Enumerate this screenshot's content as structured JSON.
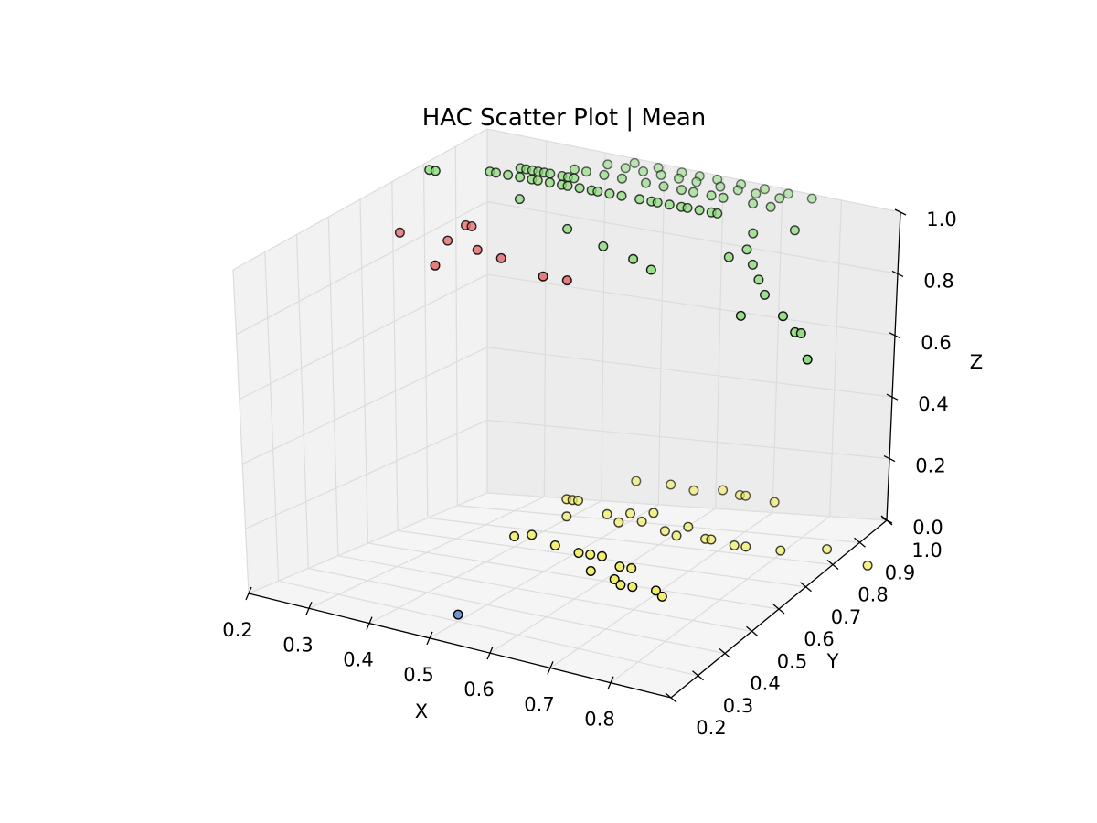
{
  "chart_data": {
    "type": "scatter3d",
    "title": "HAC Scatter Plot | Mean",
    "xlabel": "X",
    "ylabel": "Y",
    "zlabel": "Z",
    "xlim": [
      0.2,
      0.9
    ],
    "ylim": [
      0.2,
      1.0
    ],
    "zlim": [
      0.0,
      1.0
    ],
    "xticks": [
      "0.2",
      "0.3",
      "0.4",
      "0.5",
      "0.6",
      "0.7",
      "0.8"
    ],
    "yticks": [
      "0.2",
      "0.3",
      "0.4",
      "0.5",
      "0.6",
      "0.7",
      "0.8",
      "0.9",
      "1.0"
    ],
    "zticks": [
      "0.0",
      "0.2",
      "0.4",
      "0.6",
      "0.8",
      "1.0"
    ],
    "grid": true,
    "series": [
      {
        "color": "#8fdc7e",
        "points": [
          [
            0.22,
            0.78,
            1.0
          ],
          [
            0.23,
            0.78,
            1.0
          ],
          [
            0.3,
            0.82,
            1.0
          ],
          [
            0.31,
            0.82,
            1.0
          ],
          [
            0.33,
            0.82,
            1.0
          ],
          [
            0.35,
            0.82,
            1.0
          ],
          [
            0.37,
            0.82,
            1.0
          ],
          [
            0.38,
            0.82,
            1.0
          ],
          [
            0.4,
            0.82,
            1.0
          ],
          [
            0.42,
            0.82,
            1.0
          ],
          [
            0.43,
            0.82,
            1.0
          ],
          [
            0.45,
            0.82,
            1.0
          ],
          [
            0.47,
            0.82,
            1.0
          ],
          [
            0.48,
            0.82,
            1.0
          ],
          [
            0.5,
            0.82,
            1.0
          ],
          [
            0.52,
            0.82,
            1.0
          ],
          [
            0.33,
            0.86,
            1.0
          ],
          [
            0.34,
            0.86,
            1.0
          ],
          [
            0.35,
            0.86,
            1.0
          ],
          [
            0.36,
            0.86,
            1.0
          ],
          [
            0.37,
            0.86,
            1.0
          ],
          [
            0.38,
            0.86,
            1.0
          ],
          [
            0.4,
            0.86,
            1.0
          ],
          [
            0.41,
            0.86,
            1.0
          ],
          [
            0.42,
            0.86,
            1.0
          ],
          [
            0.55,
            0.82,
            1.0
          ],
          [
            0.57,
            0.82,
            1.0
          ],
          [
            0.58,
            0.82,
            1.0
          ],
          [
            0.6,
            0.82,
            1.0
          ],
          [
            0.62,
            0.82,
            1.0
          ],
          [
            0.63,
            0.82,
            1.0
          ],
          [
            0.65,
            0.82,
            1.0
          ],
          [
            0.67,
            0.82,
            1.0
          ],
          [
            0.68,
            0.82,
            1.0
          ],
          [
            0.4,
            0.9,
            1.0
          ],
          [
            0.42,
            0.9,
            1.0
          ],
          [
            0.45,
            0.9,
            1.0
          ],
          [
            0.48,
            0.9,
            1.0
          ],
          [
            0.52,
            0.9,
            1.0
          ],
          [
            0.55,
            0.9,
            1.0
          ],
          [
            0.58,
            0.9,
            1.0
          ],
          [
            0.6,
            0.9,
            1.0
          ],
          [
            0.63,
            0.9,
            1.0
          ],
          [
            0.65,
            0.9,
            1.0
          ],
          [
            0.7,
            0.9,
            1.0
          ],
          [
            0.73,
            0.9,
            1.0
          ],
          [
            0.43,
            0.95,
            1.0
          ],
          [
            0.46,
            0.95,
            1.0
          ],
          [
            0.49,
            0.95,
            1.0
          ],
          [
            0.52,
            0.95,
            1.0
          ],
          [
            0.55,
            0.95,
            1.0
          ],
          [
            0.58,
            0.95,
            1.0
          ],
          [
            0.62,
            0.95,
            1.0
          ],
          [
            0.65,
            0.95,
            1.0
          ],
          [
            0.68,
            0.95,
            1.0
          ],
          [
            0.72,
            0.95,
            1.0
          ],
          [
            0.46,
            0.98,
            1.0
          ],
          [
            0.5,
            0.98,
            1.0
          ],
          [
            0.54,
            0.98,
            1.0
          ],
          [
            0.57,
            0.98,
            1.0
          ],
          [
            0.6,
            0.98,
            1.0
          ],
          [
            0.64,
            0.98,
            1.0
          ],
          [
            0.68,
            0.98,
            1.0
          ],
          [
            0.72,
            0.98,
            1.0
          ],
          [
            0.76,
            0.98,
            1.0
          ],
          [
            0.36,
            0.8,
            0.95
          ],
          [
            0.45,
            0.78,
            0.9
          ],
          [
            0.52,
            0.76,
            0.88
          ],
          [
            0.58,
            0.74,
            0.87
          ],
          [
            0.62,
            0.72,
            0.86
          ],
          [
            0.72,
            0.78,
            0.9
          ],
          [
            0.74,
            0.8,
            0.92
          ],
          [
            0.76,
            0.78,
            0.89
          ],
          [
            0.78,
            0.76,
            0.86
          ],
          [
            0.8,
            0.74,
            0.83
          ],
          [
            0.85,
            0.7,
            0.8
          ],
          [
            0.88,
            0.68,
            0.77
          ],
          [
            0.89,
            0.68,
            0.77
          ],
          [
            0.92,
            0.64,
            0.72
          ],
          [
            0.78,
            0.7,
            0.78
          ],
          [
            0.74,
            0.82,
            0.96
          ],
          [
            0.8,
            0.84,
            0.98
          ]
        ]
      },
      {
        "color": "#e57373",
        "points": [
          [
            0.18,
            0.76,
            0.82
          ],
          [
            0.26,
            0.76,
            0.82
          ],
          [
            0.28,
            0.78,
            0.86
          ],
          [
            0.29,
            0.78,
            0.86
          ],
          [
            0.27,
            0.7,
            0.78
          ],
          [
            0.32,
            0.74,
            0.82
          ],
          [
            0.37,
            0.72,
            0.82
          ],
          [
            0.45,
            0.7,
            0.8
          ],
          [
            0.49,
            0.7,
            0.8
          ]
        ]
      },
      {
        "color": "#f2ee6b",
        "points": [
          [
            0.43,
            0.82,
            0.09
          ],
          [
            0.44,
            0.82,
            0.09
          ],
          [
            0.45,
            0.82,
            0.09
          ],
          [
            0.43,
            0.82,
            0.04
          ],
          [
            0.5,
            0.82,
            0.06
          ],
          [
            0.52,
            0.82,
            0.04
          ],
          [
            0.54,
            0.82,
            0.07
          ],
          [
            0.56,
            0.82,
            0.05
          ],
          [
            0.58,
            0.82,
            0.08
          ],
          [
            0.6,
            0.82,
            0.03
          ],
          [
            0.62,
            0.82,
            0.02
          ],
          [
            0.64,
            0.82,
            0.05
          ],
          [
            0.67,
            0.82,
            0.02
          ],
          [
            0.68,
            0.82,
            0.02
          ],
          [
            0.72,
            0.82,
            0.01
          ],
          [
            0.74,
            0.82,
            0.01
          ],
          [
            0.8,
            0.82,
            0.01
          ],
          [
            0.88,
            0.82,
            0.03
          ],
          [
            0.51,
            0.9,
            0.12
          ],
          [
            0.57,
            0.9,
            0.12
          ],
          [
            0.61,
            0.9,
            0.11
          ],
          [
            0.66,
            0.9,
            0.12
          ],
          [
            0.69,
            0.9,
            0.11
          ],
          [
            0.7,
            0.9,
            0.11
          ],
          [
            0.75,
            0.9,
            0.1
          ],
          [
            0.4,
            0.7,
            0.03
          ],
          [
            0.42,
            0.72,
            0.03
          ],
          [
            0.47,
            0.7,
            0.02
          ],
          [
            0.52,
            0.68,
            0.02
          ],
          [
            0.54,
            0.68,
            0.02
          ],
          [
            0.56,
            0.68,
            0.02
          ],
          [
            0.6,
            0.66,
            0.01
          ],
          [
            0.62,
            0.66,
            0.01
          ],
          [
            0.57,
            0.62,
            0.01
          ],
          [
            0.62,
            0.6,
            0.01
          ],
          [
            0.64,
            0.58,
            0.01
          ],
          [
            0.66,
            0.58,
            0.01
          ],
          [
            0.7,
            0.58,
            0.01
          ],
          [
            0.72,
            0.56,
            0.01
          ],
          [
            0.96,
            0.8,
            0.01
          ]
        ]
      },
      {
        "color": "#6f96d2",
        "points": [
          [
            0.5,
            0.3,
            0.02
          ]
        ]
      }
    ]
  }
}
